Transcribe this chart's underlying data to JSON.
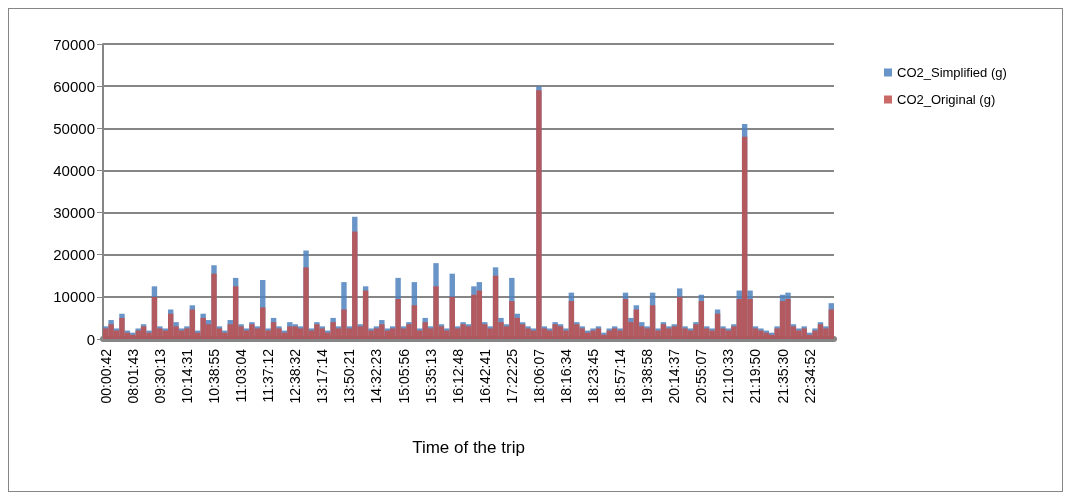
{
  "chart_data": {
    "type": "bar",
    "xlabel": "Time of the trip",
    "categories": [
      "00:00:42",
      null,
      null,
      null,
      null,
      "08:01:43",
      null,
      null,
      null,
      null,
      "09:30:13",
      null,
      null,
      null,
      null,
      "10:14:31",
      null,
      null,
      null,
      null,
      "10:38:55",
      null,
      null,
      null,
      null,
      "11:03:04",
      null,
      null,
      null,
      null,
      "11:37:12",
      null,
      null,
      null,
      null,
      "12:38:32",
      null,
      null,
      null,
      null,
      "13:17:14",
      null,
      null,
      null,
      null,
      "13:50:21",
      null,
      null,
      null,
      null,
      "14:32:23",
      null,
      null,
      null,
      null,
      "15:05:56",
      null,
      null,
      null,
      null,
      "15:35:13",
      null,
      null,
      null,
      null,
      "16:12:48",
      null,
      null,
      null,
      null,
      "16:42:41",
      null,
      null,
      null,
      null,
      "17:22:25",
      null,
      null,
      null,
      null,
      "18:06:07",
      null,
      null,
      null,
      null,
      "18:16:34",
      null,
      null,
      null,
      null,
      "18:23:45",
      null,
      null,
      null,
      null,
      "18:57:14",
      null,
      null,
      null,
      null,
      "19:38:58",
      null,
      null,
      null,
      null,
      "20:14:37",
      null,
      null,
      null,
      null,
      "20:55:07",
      null,
      null,
      null,
      null,
      "21:10:33",
      null,
      null,
      null,
      null,
      "21:19:50",
      null,
      null,
      null,
      null,
      "21:35:30",
      null,
      null,
      null,
      null,
      "22:34:52",
      null,
      null,
      null,
      null
    ],
    "series": [
      {
        "name": "CO2_Simplified (g)",
        "color": "#4f81bd",
        "values": [
          3000,
          4500,
          2500,
          6000,
          2000,
          1500,
          2500,
          3500,
          2000,
          12500,
          3000,
          2500,
          7000,
          4000,
          2500,
          3000,
          8000,
          2000,
          6000,
          4500,
          17500,
          3000,
          2000,
          4500,
          14500,
          3500,
          2500,
          4000,
          3000,
          14000,
          2500,
          5000,
          3000,
          2000,
          4000,
          3500,
          3000,
          21000,
          2500,
          4000,
          3000,
          2000,
          5000,
          3000,
          13500,
          3000,
          29000,
          3500,
          12500,
          2500,
          3000,
          4500,
          2500,
          3000,
          14500,
          3000,
          4000,
          13500,
          2500,
          5000,
          3000,
          18000,
          3500,
          2500,
          15500,
          3000,
          4000,
          3500,
          12500,
          13500,
          4000,
          3000,
          17000,
          5000,
          3500,
          14500,
          6000,
          4000,
          3000,
          2500,
          60000,
          3000,
          2500,
          4000,
          3500,
          2500,
          11000,
          4000,
          3000,
          2000,
          2500,
          3000,
          1500,
          2500,
          3000,
          2500,
          11000,
          5000,
          8000,
          4000,
          3000,
          11000,
          2500,
          4000,
          3000,
          3500,
          12000,
          3000,
          2500,
          4000,
          10500,
          3000,
          2500,
          7000,
          3000,
          2500,
          3500,
          11500,
          51000,
          11500,
          3000,
          2500,
          2000,
          1500,
          3000,
          10500,
          11000,
          3500,
          2500,
          3000,
          1500,
          2500,
          4000,
          3000,
          8500
        ]
      },
      {
        "name": "CO2_Original (g)",
        "color": "#c0504d",
        "values": [
          2500,
          3500,
          2000,
          5000,
          1500,
          1000,
          2000,
          3000,
          1500,
          10000,
          2500,
          2000,
          6000,
          3000,
          2000,
          2500,
          7000,
          1500,
          5000,
          3500,
          15500,
          2500,
          1500,
          3500,
          12500,
          3000,
          2000,
          3500,
          2500,
          7500,
          2000,
          4000,
          2500,
          1500,
          3000,
          3000,
          2500,
          17000,
          2000,
          3500,
          2500,
          1500,
          4000,
          2500,
          7000,
          2500,
          25500,
          3000,
          11500,
          2000,
          2500,
          3500,
          2000,
          2500,
          9500,
          2500,
          3500,
          8000,
          2000,
          4000,
          2500,
          12500,
          3000,
          2000,
          10000,
          2500,
          3500,
          3000,
          10500,
          11500,
          3500,
          2500,
          15000,
          4000,
          3000,
          9000,
          5000,
          3500,
          2500,
          2000,
          59000,
          2500,
          2000,
          3500,
          3000,
          2000,
          9000,
          3500,
          2500,
          1500,
          2000,
          2500,
          1000,
          2000,
          2500,
          2000,
          9500,
          4000,
          7000,
          3000,
          2500,
          8000,
          2000,
          3500,
          2500,
          3000,
          10000,
          2500,
          2000,
          3500,
          9000,
          2500,
          2000,
          6000,
          2500,
          2000,
          3000,
          9500,
          48000,
          9500,
          2500,
          2000,
          1500,
          1000,
          2500,
          9000,
          9500,
          3000,
          2000,
          2500,
          1000,
          2000,
          3500,
          2500,
          7000
        ]
      }
    ],
    "ylim": [
      0,
      70000
    ],
    "yticks": [
      0,
      10000,
      20000,
      30000,
      40000,
      50000,
      60000,
      70000
    ],
    "grid": "y",
    "legend": "top right"
  }
}
